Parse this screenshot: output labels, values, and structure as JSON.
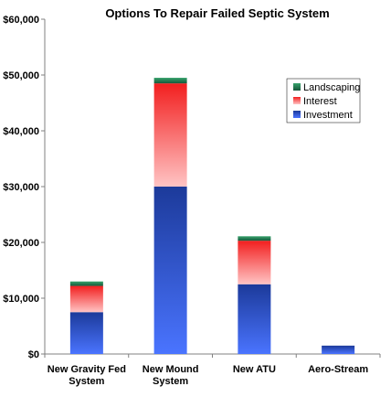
{
  "chart_data": {
    "type": "bar",
    "stacked": true,
    "title": "Options To Repair Failed Septic System",
    "xlabel": "",
    "ylabel": "",
    "ylim": [
      0,
      60000
    ],
    "yticks": [
      0,
      10000,
      20000,
      30000,
      40000,
      50000,
      60000
    ],
    "ytick_labels": [
      "$0",
      "$10,000",
      "$20,000",
      "$30,000",
      "$40,000",
      "$50,000",
      "$60,000"
    ],
    "grid": false,
    "legend_position": "top-right",
    "categories": [
      [
        "New Gravity Fed",
        "System"
      ],
      [
        "New Mound",
        "System"
      ],
      [
        "New ATU"
      ],
      [
        "Aero-Stream"
      ]
    ],
    "series": [
      {
        "name": "Investment",
        "color": "#2f57d6",
        "values": [
          7500,
          30000,
          12500,
          1500
        ]
      },
      {
        "name": "Interest",
        "color": "#f23a3a",
        "values": [
          4700,
          18500,
          7800,
          0
        ]
      },
      {
        "name": "Landscaping",
        "color": "#1f6f47",
        "values": [
          800,
          1000,
          800,
          0
        ]
      }
    ],
    "legend_order": [
      "Landscaping",
      "Interest",
      "Investment"
    ]
  }
}
